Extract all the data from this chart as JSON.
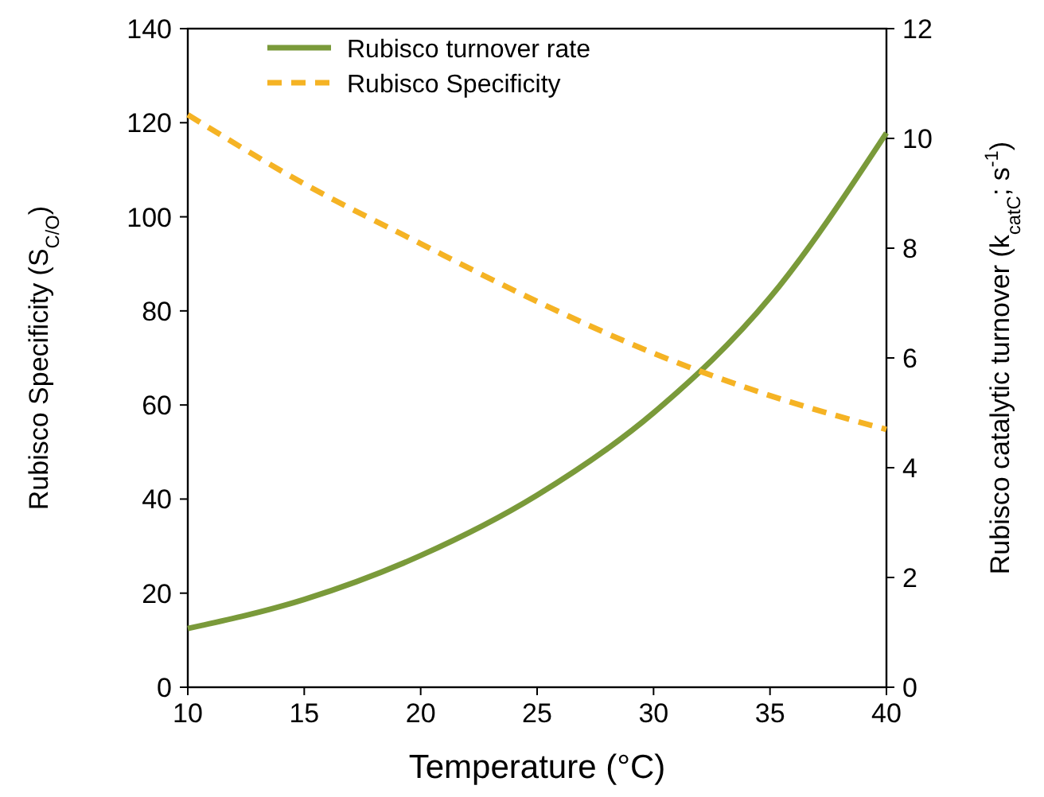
{
  "chart_data": {
    "type": "line",
    "xlabel": "Temperature (°C)",
    "ylabel": "Rubisco Specificity (S$_{C/O}$)",
    "y2label": "Rubisco catalytic turnover  (k$_{catC}$; s$^{-1}$)",
    "x": [
      10,
      15,
      20,
      25,
      30,
      35,
      40
    ],
    "series": [
      {
        "name": "Rubisco turnover rate",
        "color": "#7a9a3a",
        "axis": "y2",
        "line_style": "solid",
        "values": [
          1.07,
          1.6,
          2.4,
          3.5,
          5.0,
          7.1,
          10.1
        ]
      },
      {
        "name": "Rubisco Specificity",
        "color": "#f5b324",
        "axis": "y",
        "line_style": "dashed",
        "values": [
          121.7,
          107,
          94.3,
          82,
          71,
          62,
          54.8
        ]
      }
    ],
    "xlim": [
      10,
      40
    ],
    "xticks": [
      10,
      15,
      20,
      25,
      30,
      35,
      40
    ],
    "ylim": [
      0,
      140
    ],
    "yticks": [
      0,
      20,
      40,
      60,
      80,
      100,
      120,
      140
    ],
    "y2lim": [
      0,
      12
    ],
    "y2ticks": [
      0,
      2,
      4,
      6,
      8,
      10,
      12
    ],
    "grid": false,
    "legend": "top left"
  }
}
